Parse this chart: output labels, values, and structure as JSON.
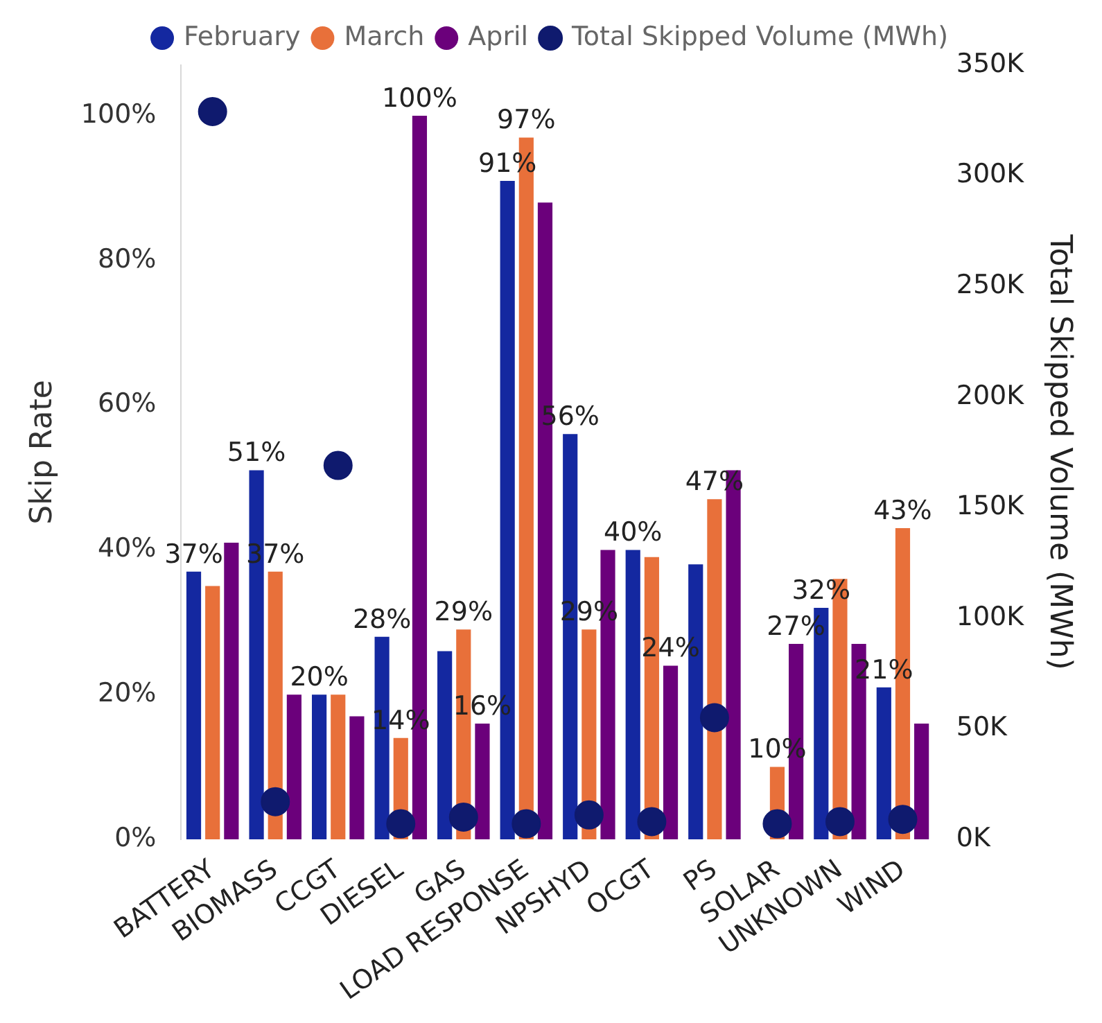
{
  "chart_data": {
    "type": "bar",
    "xlabel": null,
    "ylabel": "Skip Rate",
    "y2label": "Total Skipped Volume (MWh)",
    "categories": [
      "BATTERY",
      "BIOMASS",
      "CCGT",
      "DIESEL",
      "GAS",
      "LOAD RESPONSE",
      "NPSHYD",
      "OCGT",
      "PS",
      "SOLAR",
      "UNKNOWN",
      "WIND"
    ],
    "series": [
      {
        "name": "February",
        "color": "#1428a0",
        "values": [
          37,
          51,
          20,
          28,
          26,
          91,
          56,
          40,
          38,
          null,
          32,
          21
        ],
        "value_labels": [
          "37%",
          "51%",
          "20%",
          "28%",
          null,
          "91%",
          "56%",
          "40%",
          null,
          null,
          "32%",
          "21%"
        ]
      },
      {
        "name": "March",
        "color": "#e8703a",
        "values": [
          35,
          37,
          20,
          14,
          29,
          97,
          29,
          39,
          47,
          10,
          36,
          43
        ],
        "value_labels": [
          null,
          "37%",
          null,
          "14%",
          "29%",
          "97%",
          "29%",
          null,
          "47%",
          "10%",
          null,
          "43%"
        ]
      },
      {
        "name": "April",
        "color": "#6b007b",
        "values": [
          41,
          20,
          17,
          100,
          16,
          88,
          40,
          24,
          51,
          27,
          27,
          16
        ],
        "value_labels": [
          null,
          null,
          null,
          "100%",
          "16%",
          null,
          null,
          "24%",
          null,
          "27%",
          null,
          null
        ]
      },
      {
        "name": "Total Skipped Volume (MWh)",
        "type": "scatter",
        "axis": "y2",
        "color": "#0f1a6e",
        "marker": "circle",
        "x": [
          "BATTERY",
          "BIOMASS",
          "CCGT",
          "DIESEL",
          "GAS",
          "LOAD RESPONSE",
          "NPSHYD",
          "OCGT",
          "PS",
          "SOLAR",
          "UNKNOWN",
          "WIND"
        ],
        "values": [
          329000,
          17000,
          169000,
          7000,
          10000,
          7000,
          11000,
          8000,
          55000,
          7000,
          8000,
          9000
        ]
      }
    ],
    "ylim": [
      0,
      107
    ],
    "yticks": [
      {
        "value": 0,
        "label": "0%"
      },
      {
        "value": 20,
        "label": "20%"
      },
      {
        "value": 40,
        "label": "40%"
      },
      {
        "value": 60,
        "label": "60%"
      },
      {
        "value": 80,
        "label": "80%"
      },
      {
        "value": 100,
        "label": "100%"
      }
    ],
    "y2lim": [
      0,
      350000
    ],
    "y2ticks": [
      {
        "value": 0,
        "label": "0K"
      },
      {
        "value": 50000,
        "label": "50K"
      },
      {
        "value": 100000,
        "label": "100K"
      },
      {
        "value": 150000,
        "label": "150K"
      },
      {
        "value": 200000,
        "label": "200K"
      },
      {
        "value": 250000,
        "label": "250K"
      },
      {
        "value": 300000,
        "label": "300K"
      },
      {
        "value": 350000,
        "label": "350K"
      }
    ],
    "grid": false,
    "legend": "top"
  }
}
